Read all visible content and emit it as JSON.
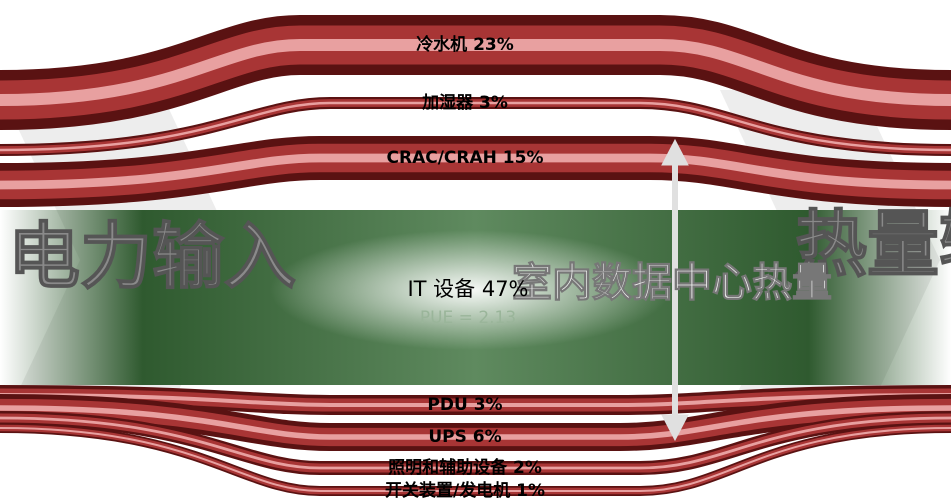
{
  "left_label": "电力输入",
  "right_label": "热量输出",
  "center_label": "室内数据中心热量",
  "it": {
    "label": "IT 设备  47%",
    "pue": "PUE = 2.13"
  },
  "flows": [
    "冷水机 23%",
    "加湿器 3%",
    "CRAC/CRAH 15%",
    "PDU 3%",
    "UPS 6%",
    "照明和辅助设备 2%",
    "开关装置/发电机 1%"
  ]
}
